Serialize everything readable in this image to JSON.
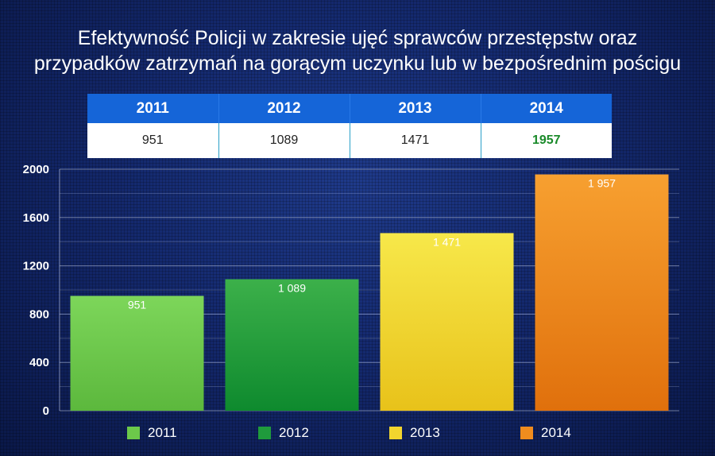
{
  "title_line1": "Efektywność Policji w zakresie ujęć sprawców przestępstw oraz",
  "title_line2": "przypadków zatrzymań na gorącym uczynku lub w bezpośrednim pościgu",
  "table": {
    "headers": [
      "2011",
      "2012",
      "2013",
      "2014"
    ],
    "values": [
      "951",
      "1089",
      "1471",
      "1957"
    ]
  },
  "chart_data": {
    "type": "bar",
    "categories": [
      "2011",
      "2012",
      "2013",
      "2014"
    ],
    "values": [
      951,
      1089,
      1471,
      1957
    ],
    "data_labels": [
      "951",
      "1 089",
      "1 471",
      "1 957"
    ],
    "ylim": [
      0,
      2000
    ],
    "yticks": [
      0,
      400,
      800,
      1200,
      1600,
      2000
    ],
    "grid": true,
    "legend": "bottom",
    "colors": [
      "#6cc94a",
      "#1f9b3c",
      "#f2d52e",
      "#f08c1e"
    ]
  }
}
